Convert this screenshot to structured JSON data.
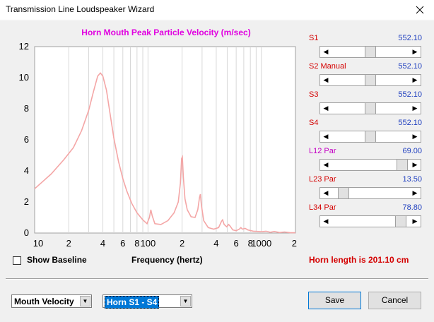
{
  "window": {
    "title": "Transmission Line Loudspeaker Wizard"
  },
  "chart_data": {
    "type": "line",
    "title": "Horn Mouth Peak Particle Velocity (m/sec)",
    "xlabel": "Frequency (hertz)",
    "x_scale": "log",
    "xlim": [
      10,
      2000
    ],
    "ylim": [
      0,
      12
    ],
    "y_ticks": [
      "0",
      "2",
      "4",
      "6",
      "8",
      "10",
      "12"
    ],
    "x_tick_labels": [
      {
        "x": 10,
        "label": "10"
      },
      {
        "x": 20,
        "label": "2"
      },
      {
        "x": 40,
        "label": "4"
      },
      {
        "x": 60,
        "label": "6"
      },
      {
        "x": 80,
        "label": "8"
      },
      {
        "x": 100,
        "label": "100"
      },
      {
        "x": 200,
        "label": "2"
      },
      {
        "x": 400,
        "label": "4"
      },
      {
        "x": 600,
        "label": "6"
      },
      {
        "x": 800,
        "label": "8"
      },
      {
        "x": 1000,
        "label": "1000"
      },
      {
        "x": 2000,
        "label": "2"
      }
    ],
    "grid": true,
    "series": [
      {
        "color": "#f4a6a6",
        "points": [
          [
            10,
            2.85
          ],
          [
            14,
            3.8
          ],
          [
            18,
            4.7
          ],
          [
            22,
            5.5
          ],
          [
            26,
            6.6
          ],
          [
            30,
            7.9
          ],
          [
            33,
            9.1
          ],
          [
            36,
            10.1
          ],
          [
            38,
            10.3
          ],
          [
            40,
            10.1
          ],
          [
            43,
            9.2
          ],
          [
            46,
            7.8
          ],
          [
            50,
            6.1
          ],
          [
            55,
            4.6
          ],
          [
            60,
            3.5
          ],
          [
            65,
            2.7
          ],
          [
            72,
            1.9
          ],
          [
            80,
            1.3
          ],
          [
            90,
            0.85
          ],
          [
            98,
            0.6
          ],
          [
            103,
            1.0
          ],
          [
            106,
            1.5
          ],
          [
            109,
            1.1
          ],
          [
            115,
            0.6
          ],
          [
            130,
            0.55
          ],
          [
            150,
            0.8
          ],
          [
            170,
            1.3
          ],
          [
            185,
            2.0
          ],
          [
            193,
            3.2
          ],
          [
            198,
            4.8
          ],
          [
            201,
            4.9
          ],
          [
            205,
            3.6
          ],
          [
            212,
            2.2
          ],
          [
            222,
            1.5
          ],
          [
            240,
            1.05
          ],
          [
            260,
            1.0
          ],
          [
            275,
            1.5
          ],
          [
            285,
            2.3
          ],
          [
            290,
            2.5
          ],
          [
            296,
            1.8
          ],
          [
            310,
            0.8
          ],
          [
            340,
            0.35
          ],
          [
            380,
            0.25
          ],
          [
            420,
            0.35
          ],
          [
            445,
            0.75
          ],
          [
            455,
            0.85
          ],
          [
            470,
            0.55
          ],
          [
            495,
            0.4
          ],
          [
            515,
            0.55
          ],
          [
            530,
            0.45
          ],
          [
            560,
            0.2
          ],
          [
            600,
            0.15
          ],
          [
            640,
            0.25
          ],
          [
            660,
            0.35
          ],
          [
            680,
            0.25
          ],
          [
            720,
            0.3
          ],
          [
            760,
            0.2
          ],
          [
            850,
            0.12
          ],
          [
            950,
            0.1
          ],
          [
            1000,
            0.08
          ],
          [
            1100,
            0.12
          ],
          [
            1200,
            0.05
          ],
          [
            1300,
            0.1
          ],
          [
            1450,
            0.03
          ],
          [
            1600,
            0.07
          ],
          [
            1800,
            0.02
          ],
          [
            2000,
            0.02
          ]
        ]
      }
    ]
  },
  "sliders": [
    {
      "label": "S1",
      "label_color": "#d40000",
      "value": "552.10",
      "level": 0.5
    },
    {
      "label": "S2  Manual",
      "label_color": "#d40000",
      "value": "552.10",
      "level": 0.5
    },
    {
      "label": "S3",
      "label_color": "#d40000",
      "value": "552.10",
      "level": 0.5
    },
    {
      "label": "S4",
      "label_color": "#d40000",
      "value": "552.10",
      "level": 0.5
    },
    {
      "label": "L12  Par",
      "label_color": "#c400c4",
      "value": "69.00",
      "level": 0.98
    },
    {
      "label": "L23  Par",
      "label_color": "#d40000",
      "value": "13.50",
      "level": 0.1
    },
    {
      "label": "L34  Par",
      "label_color": "#d40000",
      "value": "78.80",
      "level": 0.96
    }
  ],
  "show_baseline": {
    "label": "Show Baseline",
    "checked": false
  },
  "horn_length": "Horn length is 201.10 cm",
  "plot_select": {
    "value": "Mouth Velocity"
  },
  "section_select": {
    "value": "Horn S1 - S4"
  },
  "buttons": {
    "save": "Save",
    "cancel": "Cancel"
  },
  "colors": {
    "title_magenta": "#e000e0",
    "curve": "#f4a6a6",
    "value_blue": "#1f3fbf",
    "label_red": "#d40000"
  },
  "icons": {
    "close": "close-icon",
    "scroll_left": "arrow-left-icon",
    "scroll_right": "arrow-right-icon",
    "dropdown": "chevron-down-icon"
  }
}
